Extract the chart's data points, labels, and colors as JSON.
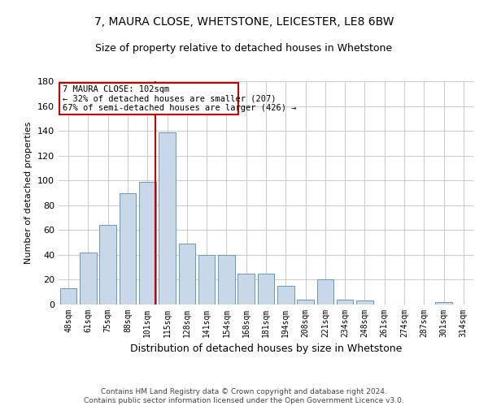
{
  "title1": "7, MAURA CLOSE, WHETSTONE, LEICESTER, LE8 6BW",
  "title2": "Size of property relative to detached houses in Whetstone",
  "xlabel": "Distribution of detached houses by size in Whetstone",
  "ylabel": "Number of detached properties",
  "categories": [
    "48sqm",
    "61sqm",
    "75sqm",
    "88sqm",
    "101sqm",
    "115sqm",
    "128sqm",
    "141sqm",
    "154sqm",
    "168sqm",
    "181sqm",
    "194sqm",
    "208sqm",
    "221sqm",
    "234sqm",
    "248sqm",
    "261sqm",
    "274sqm",
    "287sqm",
    "301sqm",
    "314sqm"
  ],
  "values": [
    13,
    42,
    64,
    90,
    99,
    139,
    49,
    40,
    40,
    25,
    25,
    15,
    4,
    20,
    4,
    3,
    0,
    0,
    0,
    2,
    0
  ],
  "bar_color": "#c8d8e8",
  "bar_edge_color": "#6699bb",
  "vline_x": 4.42,
  "vline_color": "#cc0000",
  "annotation_line1": "7 MAURA CLOSE: 102sqm",
  "annotation_line2": "← 32% of detached houses are smaller (207)",
  "annotation_line3": "67% of semi-detached houses are larger (426) →",
  "annotation_box_color": "#ffffff",
  "annotation_box_edge_color": "#cc0000",
  "ylim": [
    0,
    180
  ],
  "yticks": [
    0,
    20,
    40,
    60,
    80,
    100,
    120,
    140,
    160,
    180
  ],
  "footnote": "Contains HM Land Registry data © Crown copyright and database right 2024.\nContains public sector information licensed under the Open Government Licence v3.0.",
  "background_color": "#ffffff",
  "grid_color": "#cccccc"
}
